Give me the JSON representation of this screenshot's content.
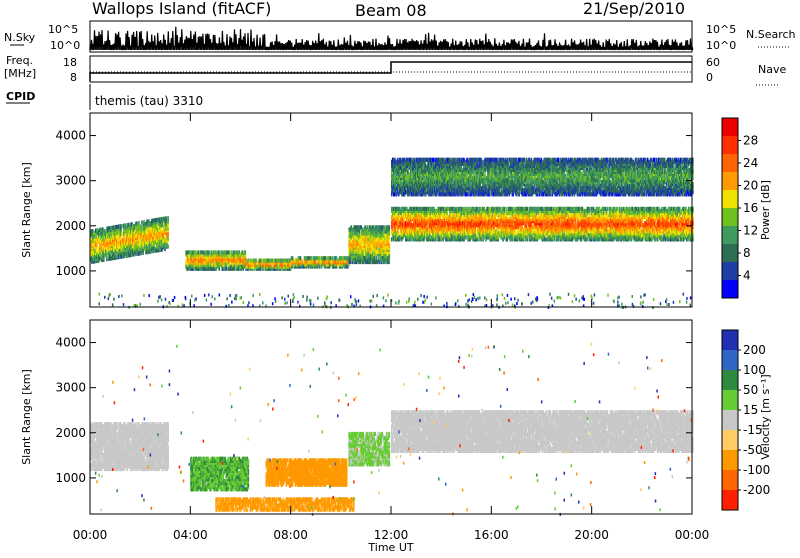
{
  "header": {
    "station": "Wallops Island (fitACF)",
    "beam": "Beam 08",
    "date": "21/Sep/2010"
  },
  "top_panels": {
    "nsky": {
      "label": "N.Sky",
      "ticks": [
        "10^5",
        "10^0"
      ]
    },
    "nsearch": {
      "label": "N.Search",
      "ticks": [
        "10^5",
        "10^0"
      ]
    },
    "freq": {
      "label_line1": "Freq.",
      "label_line2": "[MHz]",
      "ticks": [
        "18",
        "8"
      ]
    },
    "nave": {
      "label": "Nave",
      "ticks": [
        "60",
        "0"
      ]
    },
    "cpid": {
      "label": "CPID",
      "value": "themis (tau) 3310"
    }
  },
  "colors": {
    "power": [
      "#0000ff",
      "#1f3fa6",
      "#2e6e54",
      "#3f9a5f",
      "#70c020",
      "#f0e000",
      "#ff9a00",
      "#ff6400",
      "#ff3000",
      "#ee0000"
    ],
    "velocity": [
      "#2030b0",
      "#2f66c8",
      "#2e8a3e",
      "#66cc33",
      "#c8c8c8",
      "#ffcc66",
      "#ff9900",
      "#ff6600",
      "#ff2000"
    ],
    "ground_scatter": "#c0c0c0"
  },
  "chart_data": [
    {
      "type": "heatmap",
      "panel": "power",
      "ylabel": "Slant Range [km]",
      "yticks": [
        "1000",
        "2000",
        "3000",
        "4000"
      ],
      "ylim": [
        200,
        4500
      ],
      "xlim_hours": [
        0,
        24
      ],
      "colorbar": {
        "label": "Power [dB]",
        "ticks": [
          "4",
          "8",
          "12",
          "16",
          "20",
          "24",
          "28"
        ]
      },
      "bands": [
        {
          "t": [
            0.0,
            3.1
          ],
          "r": [
            1200,
            2200
          ],
          "peak_db": 22
        },
        {
          "t": [
            3.8,
            6.2
          ],
          "r": [
            1050,
            1450
          ],
          "peak_db": 24
        },
        {
          "t": [
            6.2,
            8.0
          ],
          "r": [
            1050,
            1250
          ],
          "peak_db": 26
        },
        {
          "t": [
            8.0,
            10.3
          ],
          "r": [
            1100,
            1300
          ],
          "peak_db": 24
        },
        {
          "t": [
            10.3,
            11.9
          ],
          "r": [
            1200,
            2000
          ],
          "peak_db": 22
        },
        {
          "t": [
            12.0,
            24.0
          ],
          "r": [
            1700,
            2400
          ],
          "peak_db": 28
        },
        {
          "t": [
            12.0,
            24.0
          ],
          "r": [
            2700,
            3500
          ],
          "peak_db": 12
        }
      ]
    },
    {
      "type": "heatmap",
      "panel": "velocity",
      "ylabel": "Slant Range [km]",
      "yticks": [
        "1000",
        "2000",
        "3000",
        "4000"
      ],
      "ylim": [
        200,
        4500
      ],
      "xlim_hours": [
        0,
        24
      ],
      "colorbar": {
        "label": "Velocity [m s⁻¹]",
        "ticks": [
          "200",
          "100",
          "50",
          "15",
          "-15",
          "-50",
          "-100",
          "-200"
        ]
      },
      "bands": [
        {
          "t": [
            0.0,
            3.1
          ],
          "r": [
            1200,
            2200
          ],
          "velocity": 0
        },
        {
          "t": [
            4.0,
            6.3
          ],
          "r": [
            750,
            1450
          ],
          "velocity": 30
        },
        {
          "t": [
            7.0,
            10.2
          ],
          "r": [
            850,
            1400
          ],
          "velocity": -60
        },
        {
          "t": [
            10.3,
            11.9
          ],
          "r": [
            1300,
            2000
          ],
          "velocity": 20
        },
        {
          "t": [
            12.0,
            24.0
          ],
          "r": [
            1600,
            2500
          ],
          "velocity": 0
        },
        {
          "t": [
            5.0,
            10.5
          ],
          "r": [
            300,
            550
          ],
          "velocity": -40
        }
      ]
    }
  ],
  "xaxis": {
    "label": "Time UT",
    "ticks": [
      "00:00",
      "04:00",
      "08:00",
      "12:00",
      "16:00",
      "20:00",
      "00:00"
    ]
  }
}
